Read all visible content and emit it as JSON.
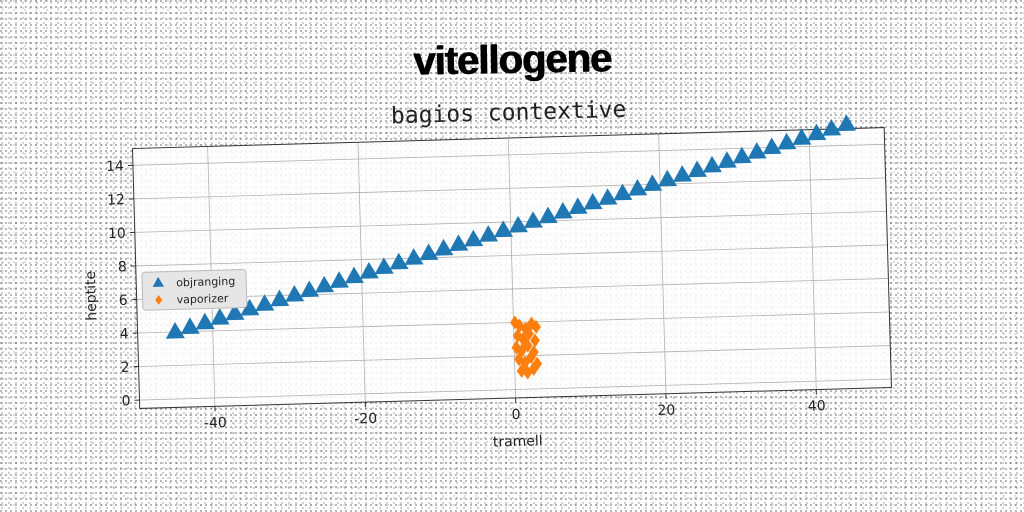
{
  "header": {
    "suptitle": "vitellogene"
  },
  "chart_data": {
    "type": "scatter",
    "title": "bagios contextive",
    "xlabel": "tramell",
    "ylabel": "heptite",
    "xlim": [
      -50,
      50
    ],
    "ylim": [
      -0.5,
      15
    ],
    "xticks": [
      -40,
      -20,
      0,
      20,
      40
    ],
    "yticks": [
      0,
      2,
      4,
      6,
      8,
      10,
      12,
      14
    ],
    "grid": true,
    "legend_position": "center-left",
    "series": [
      {
        "name": "objranging",
        "marker": "triangle",
        "color": "#1f77b4",
        "x": [
          -45,
          -43,
          -41,
          -39,
          -37,
          -35,
          -33,
          -31,
          -29,
          -27,
          -25,
          -23,
          -21,
          -19,
          -17,
          -15,
          -13,
          -11,
          -9,
          -7,
          -5,
          -3,
          -1,
          1,
          3,
          5,
          7,
          9,
          11,
          13,
          15,
          17,
          19,
          21,
          23,
          25,
          27,
          29,
          31,
          33,
          35,
          37,
          39,
          41,
          43,
          45
        ],
        "y": [
          4.0,
          4.25,
          4.5,
          4.75,
          5.0,
          5.25,
          5.5,
          5.75,
          6.0,
          6.25,
          6.5,
          6.75,
          7.0,
          7.25,
          7.5,
          7.75,
          8.0,
          8.25,
          8.5,
          8.75,
          9.0,
          9.25,
          9.5,
          9.75,
          10.0,
          10.25,
          10.5,
          10.75,
          11.0,
          11.25,
          11.5,
          11.75,
          12.0,
          12.25,
          12.5,
          12.75,
          13.0,
          13.25,
          13.5,
          13.75,
          14.0,
          14.25,
          14.5,
          14.75,
          15.0,
          15.25
        ]
      },
      {
        "name": "vaporizer",
        "marker": "diamond",
        "color": "#ff7f0e",
        "x": [
          0.2,
          0.8,
          1.6,
          2.4,
          3.0,
          0.5,
          1.2,
          2.0,
          2.8,
          0.3,
          1.0,
          1.8,
          2.6,
          0.6,
          1.4,
          2.2,
          3.0,
          0.9,
          1.7,
          2.5
        ],
        "y": [
          4.0,
          3.8,
          3.6,
          3.9,
          3.7,
          3.2,
          3.0,
          3.3,
          2.9,
          2.5,
          2.3,
          2.6,
          2.2,
          1.8,
          1.6,
          1.9,
          1.5,
          1.1,
          1.0,
          1.2
        ]
      }
    ]
  }
}
